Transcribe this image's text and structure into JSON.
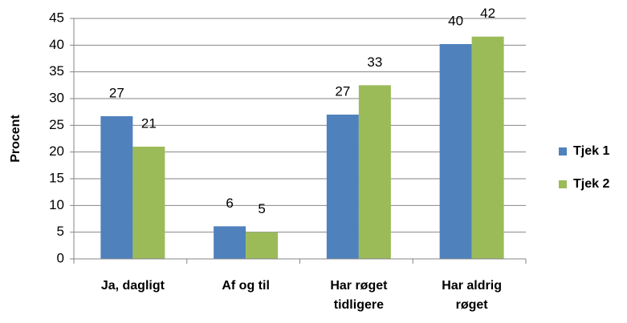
{
  "chart_data": {
    "type": "bar",
    "y_label": "Procent",
    "categories": [
      "Ja, dagligt",
      "Af og til",
      "Har røget\ntidligere",
      "Har aldrig\nrøget"
    ],
    "series": [
      {
        "name": "Tjek 1",
        "color": "#4f81bd",
        "values": [
          26.7,
          6.1,
          27,
          40.2
        ],
        "value_labels": [
          "27",
          "6",
          "27",
          "40"
        ]
      },
      {
        "name": "Tjek 2",
        "color": "#9bbb59",
        "values": [
          21,
          5,
          32.5,
          41.6
        ],
        "value_labels": [
          "21",
          "5",
          "33",
          "42"
        ]
      }
    ],
    "ylim": [
      0,
      45
    ],
    "yticks": [
      0,
      5,
      10,
      15,
      20,
      25,
      30,
      35,
      40,
      45
    ],
    "grid": true,
    "legend": "right"
  }
}
